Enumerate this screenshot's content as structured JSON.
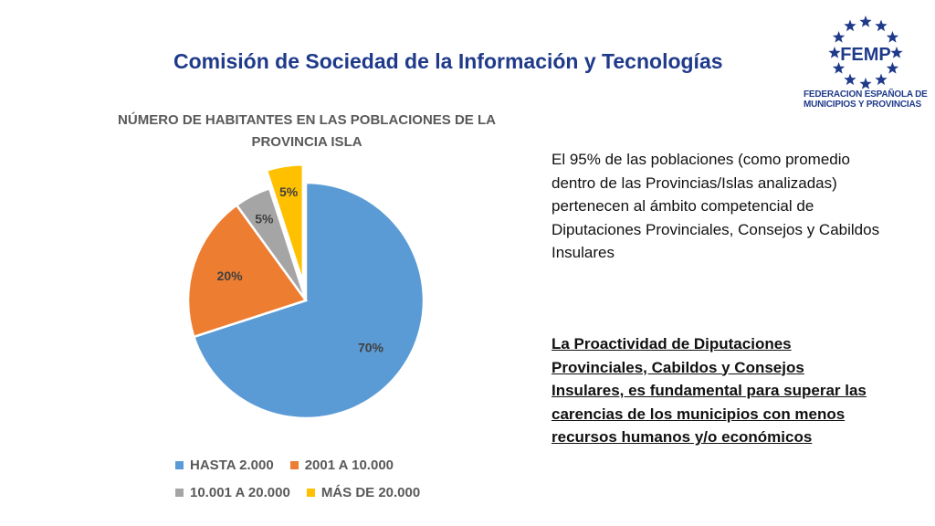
{
  "slide": {
    "title": "Comisión de Sociedad de la Información y Tecnologías"
  },
  "logo": {
    "text": "FEMP",
    "caption": "FEDERACION ESPAÑOLA DE MUNICIPIOS Y PROVINCIAS",
    "color": "#1f3a8a",
    "icon": "star-ring-icon"
  },
  "paragraphs": {
    "main": "El 95% de las poblaciones (como promedio dentro de las Provincias/Islas analizadas) pertenecen al ámbito competencial de Diputaciones Provinciales, Consejos y Cabildos Insulares",
    "highlight": "La Proactividad de Diputaciones Provinciales, Cabildos y Consejos Insulares, es fundamental para superar las carencias de los municipios con menos recursos humanos y/o económicos"
  },
  "chart_data": {
    "type": "pie",
    "title": "NÚMERO DE HABITANTES EN LAS POBLACIONES DE LA PROVINCIA ISLA",
    "categories": [
      "HASTA 2.000",
      "2001 A 10.000",
      "10.001 A 20.000",
      "MÁS DE 20.000"
    ],
    "values": [
      70,
      20,
      5,
      5
    ],
    "labels": [
      "70%",
      "20%",
      "5%",
      "5%"
    ],
    "colors": [
      "#5b9bd5",
      "#ed7d31",
      "#a5a5a5",
      "#ffc000"
    ],
    "exploded": [
      false,
      false,
      false,
      true
    ],
    "legend": "bottom"
  }
}
